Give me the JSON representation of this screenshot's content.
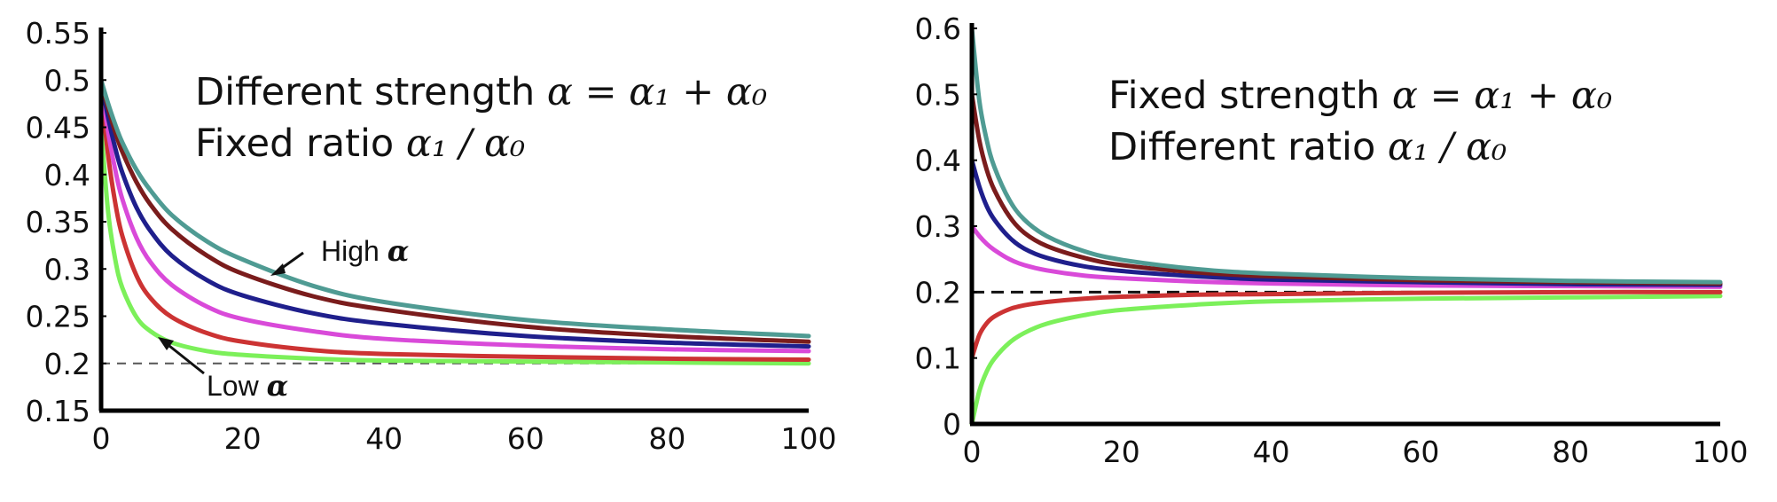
{
  "chart_data": [
    {
      "type": "line",
      "title": "",
      "xlabel": "",
      "ylabel": "",
      "xlim": [
        0,
        100
      ],
      "ylim": [
        0.15,
        0.55
      ],
      "x_ticks": [
        "0",
        "20",
        "40",
        "60",
        "80",
        "100"
      ],
      "y_ticks": [
        "0.15",
        "0.2",
        "0.25",
        "0.3",
        "0.35",
        "0.4",
        "0.45",
        "0.5",
        "0.55"
      ],
      "annotations": {
        "line1_prefix": "Different strength ",
        "line1_math": "α = α₁ + α₀",
        "line2_prefix": "Fixed ratio ",
        "line2_math": "α₁ / α₀"
      },
      "callouts": {
        "high_text": "High ",
        "high_math": "α",
        "low_text": "Low ",
        "low_math": "α"
      },
      "reference_line": {
        "y": 0.2,
        "style": "dashed"
      },
      "x": [
        0,
        1,
        2,
        3,
        5,
        7,
        10,
        15,
        20,
        30,
        40,
        60,
        80,
        100
      ],
      "series": [
        {
          "color": "#4f9b93",
          "values": [
            0.5,
            0.475,
            0.453,
            0.434,
            0.405,
            0.383,
            0.357,
            0.329,
            0.31,
            0.282,
            0.265,
            0.246,
            0.236,
            0.229
          ]
        },
        {
          "color": "#7a1c1c",
          "values": [
            0.5,
            0.47,
            0.445,
            0.424,
            0.392,
            0.368,
            0.342,
            0.314,
            0.295,
            0.271,
            0.257,
            0.239,
            0.229,
            0.223
          ]
        },
        {
          "color": "#1f1f8c",
          "values": [
            0.5,
            0.46,
            0.428,
            0.402,
            0.365,
            0.34,
            0.314,
            0.288,
            0.272,
            0.253,
            0.242,
            0.229,
            0.222,
            0.218
          ]
        },
        {
          "color": "#d94ad9",
          "values": [
            0.5,
            0.445,
            0.405,
            0.374,
            0.333,
            0.307,
            0.283,
            0.26,
            0.247,
            0.234,
            0.226,
            0.219,
            0.215,
            0.213
          ]
        },
        {
          "color": "#cc3333",
          "values": [
            0.49,
            0.42,
            0.37,
            0.335,
            0.293,
            0.269,
            0.249,
            0.232,
            0.223,
            0.214,
            0.21,
            0.207,
            0.205,
            0.204
          ]
        },
        {
          "color": "#7cf05a",
          "values": [
            0.45,
            0.36,
            0.31,
            0.28,
            0.249,
            0.234,
            0.222,
            0.213,
            0.209,
            0.205,
            0.203,
            0.202,
            0.201,
            0.2
          ]
        }
      ]
    },
    {
      "type": "line",
      "title": "",
      "xlabel": "",
      "ylabel": "",
      "xlim": [
        0,
        100
      ],
      "ylim": [
        0,
        0.6
      ],
      "x_ticks": [
        "0",
        "20",
        "40",
        "60",
        "80",
        "100"
      ],
      "y_ticks": [
        "0",
        "0.1",
        "0.2",
        "0.3",
        "0.4",
        "0.5",
        "0.6"
      ],
      "annotations": {
        "line1_prefix": "Fixed strength ",
        "line1_math": "α = α₁ + α₀",
        "line2_prefix": "Different ratio ",
        "line2_math": "α₁ / α₀"
      },
      "reference_line": {
        "y": 0.2,
        "style": "dashed"
      },
      "x": [
        0,
        1,
        2,
        3,
        5,
        7,
        10,
        15,
        20,
        30,
        40,
        60,
        80,
        100
      ],
      "series": [
        {
          "color": "#4f9b93",
          "values": [
            0.6,
            0.49,
            0.43,
            0.39,
            0.34,
            0.31,
            0.285,
            0.262,
            0.249,
            0.235,
            0.228,
            0.221,
            0.217,
            0.215
          ]
        },
        {
          "color": "#7a1c1c",
          "values": [
            0.5,
            0.43,
            0.385,
            0.355,
            0.315,
            0.29,
            0.27,
            0.252,
            0.241,
            0.23,
            0.224,
            0.218,
            0.215,
            0.213
          ]
        },
        {
          "color": "#1f1f8c",
          "values": [
            0.4,
            0.36,
            0.33,
            0.31,
            0.283,
            0.266,
            0.252,
            0.239,
            0.232,
            0.224,
            0.219,
            0.215,
            0.212,
            0.211
          ]
        },
        {
          "color": "#d94ad9",
          "values": [
            0.3,
            0.285,
            0.273,
            0.264,
            0.25,
            0.241,
            0.233,
            0.225,
            0.221,
            0.216,
            0.213,
            0.21,
            0.209,
            0.208
          ]
        },
        {
          "color": "#cc3333",
          "values": [
            0.1,
            0.135,
            0.153,
            0.163,
            0.174,
            0.18,
            0.185,
            0.19,
            0.193,
            0.196,
            0.197,
            0.199,
            0.2,
            0.2
          ]
        },
        {
          "color": "#7cf05a",
          "values": [
            0.0,
            0.05,
            0.08,
            0.099,
            0.123,
            0.138,
            0.152,
            0.165,
            0.173,
            0.181,
            0.186,
            0.19,
            0.192,
            0.194
          ]
        }
      ]
    }
  ]
}
